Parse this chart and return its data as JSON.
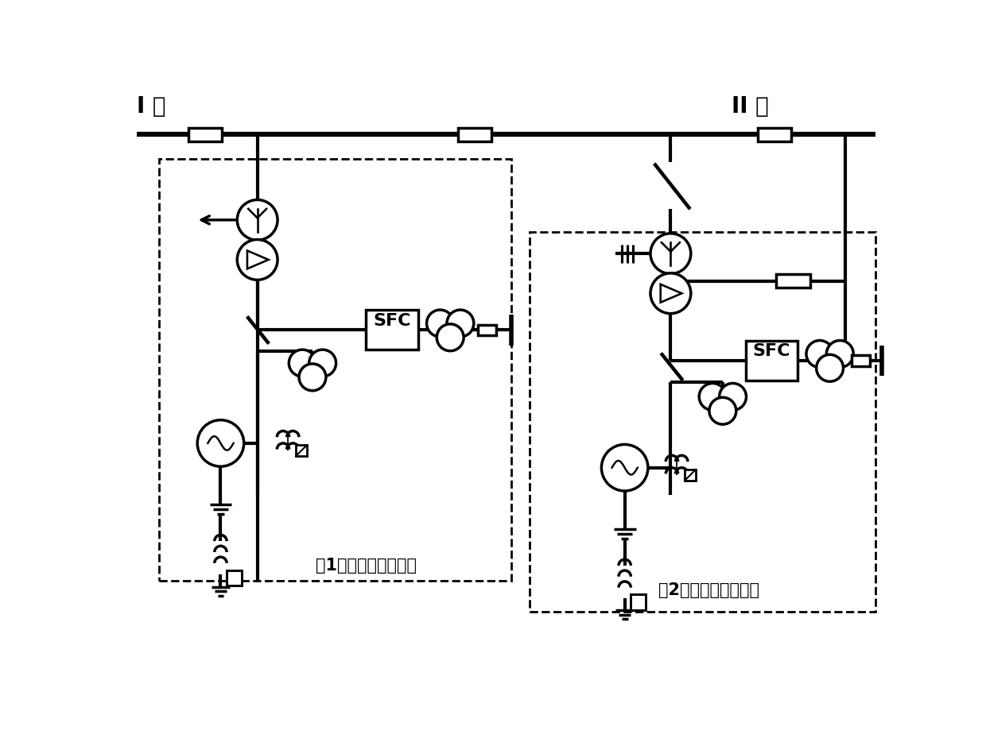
{
  "bg_color": "#ffffff",
  "lw": 2.5,
  "bus1_label": "I 母",
  "bus2_label": "II 母",
  "label1": "第1台调相机变压器组",
  "label2": "第2台调相机变压器组",
  "sfc_label": "SFC"
}
